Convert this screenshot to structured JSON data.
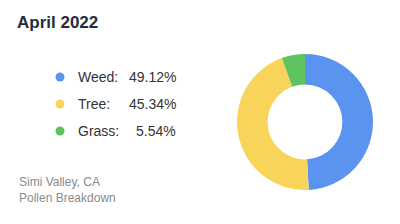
{
  "chart_data": {
    "type": "pie",
    "title": "April 2022",
    "categories": [
      "Weed:",
      "Tree:",
      "Grass:"
    ],
    "values": [
      49.12,
      45.34,
      5.54
    ],
    "value_labels": [
      "49.12%",
      "45.34%",
      "5.54%"
    ],
    "colors": [
      "#5b93f0",
      "#f9d45a",
      "#5cc35e"
    ],
    "annotations": [
      "Simi Valley, CA",
      "Pollen Breakdown"
    ],
    "legend": "left",
    "data_labels": false
  }
}
